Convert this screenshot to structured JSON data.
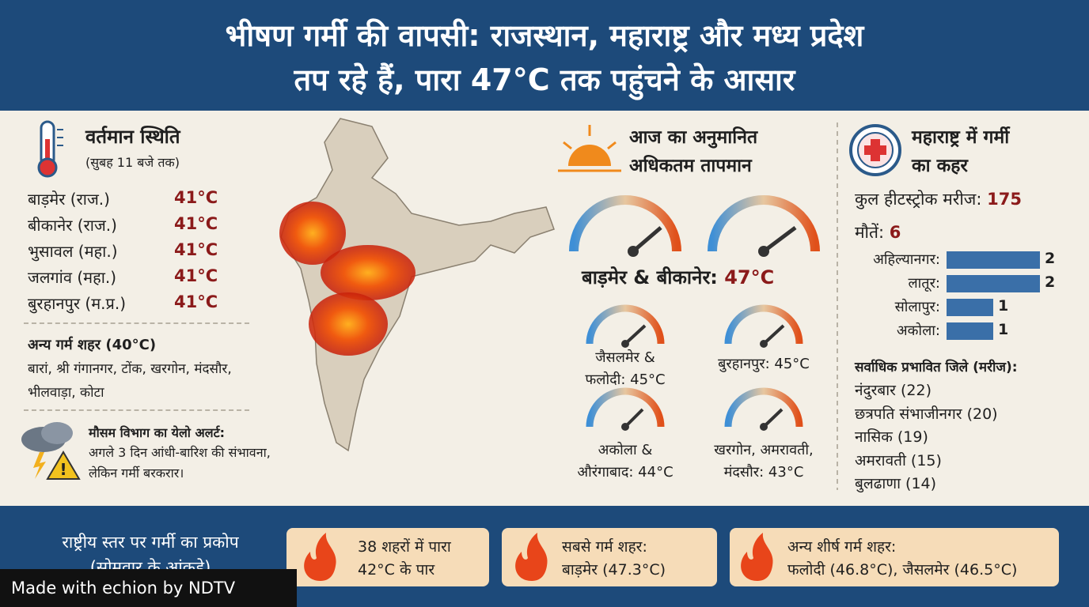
{
  "header": {
    "title_lines": [
      "भीषण गर्मी की वापसी: राजस्थान, महाराष्ट्र और मध्य प्रदेश",
      "तप रहे हैं, पारा 47°C तक पहुंचने के आसार"
    ]
  },
  "current": {
    "title": "वर्तमान स्थिति",
    "subtitle": "(सुबह 11 बजे तक)",
    "cities": [
      {
        "name": "बाड़मेर (राज.)",
        "temp": "41°C"
      },
      {
        "name": "बीकानेर (राज.)",
        "temp": "41°C"
      },
      {
        "name": "भुसावल (महा.)",
        "temp": "41°C"
      },
      {
        "name": "जलगांव (महा.)",
        "temp": "41°C"
      },
      {
        "name": "बुरहानपुर (म.प्र.)",
        "temp": "41°C"
      }
    ],
    "other_heading": "अन्य गर्म शहर (40°C)",
    "other_text": "बारां, श्री गंगानगर, टोंक, खरगोन, मंदसौर, भीलवाड़ा, कोटा",
    "alert_title": "मौसम विभाग का येलो अलर्ट:",
    "alert_text": "अगले 3 दिन आंधी-बारिश की संभावना, लेकिन गर्मी बरकरार।"
  },
  "forecast": {
    "title_lines": [
      "आज का अनुमानित",
      "अधिकतम तापमान"
    ],
    "main_label": "बाड़मेर & बीकानेर:",
    "main_temp": "47°C",
    "gauges": [
      {
        "lines": [
          "जैसलमेर &",
          "फलोदी: 45°C"
        ]
      },
      {
        "lines": [
          "बुरहानपुर: 45°C"
        ]
      },
      {
        "lines": [
          "अकोला &",
          "औरंगाबाद: 44°C"
        ]
      },
      {
        "lines": [
          "खरगोन, अमरावती,",
          "मंदसौर: 43°C"
        ]
      }
    ]
  },
  "maharashtra": {
    "title_lines": [
      "महाराष्ट्र में गर्मी",
      "का कहर"
    ],
    "patients_label": "कुल हीटस्ट्रोक मरीज:",
    "patients": 175,
    "deaths_label": "मौतें:",
    "deaths": 6,
    "death_bars": {
      "categories": [
        "अहिल्यानगर:",
        "लातूर:",
        "सोलापुर:",
        "अकोला:"
      ],
      "values": [
        2,
        2,
        1,
        1
      ],
      "color": "#3a6fa8"
    },
    "districts_heading": "सर्वाधिक प्रभावित जिले (मरीज):",
    "districts": [
      "नंदुरबार (22)",
      "छत्रपति संभाजीनगर (20)",
      "नासिक (19)",
      "अमरावती (15)",
      "बुलढाणा (14)"
    ]
  },
  "national": {
    "title_lines": [
      "राष्ट्रीय स्तर पर गर्मी का प्रकोप",
      "(सोमवार के आंकड़े)"
    ],
    "cards": [
      {
        "lines": [
          "38 शहरों में पारा",
          "42°C के पार"
        ]
      },
      {
        "lines": [
          "सबसे गर्म शहर:",
          "बाड़मेर (47.3°C)"
        ]
      },
      {
        "lines": [
          "अन्य शीर्ष गर्म शहर:",
          "फलोदी (46.8°C), जैसलमेर (46.5°C)"
        ]
      }
    ]
  },
  "watermark": "Made with echion by NDTV"
}
